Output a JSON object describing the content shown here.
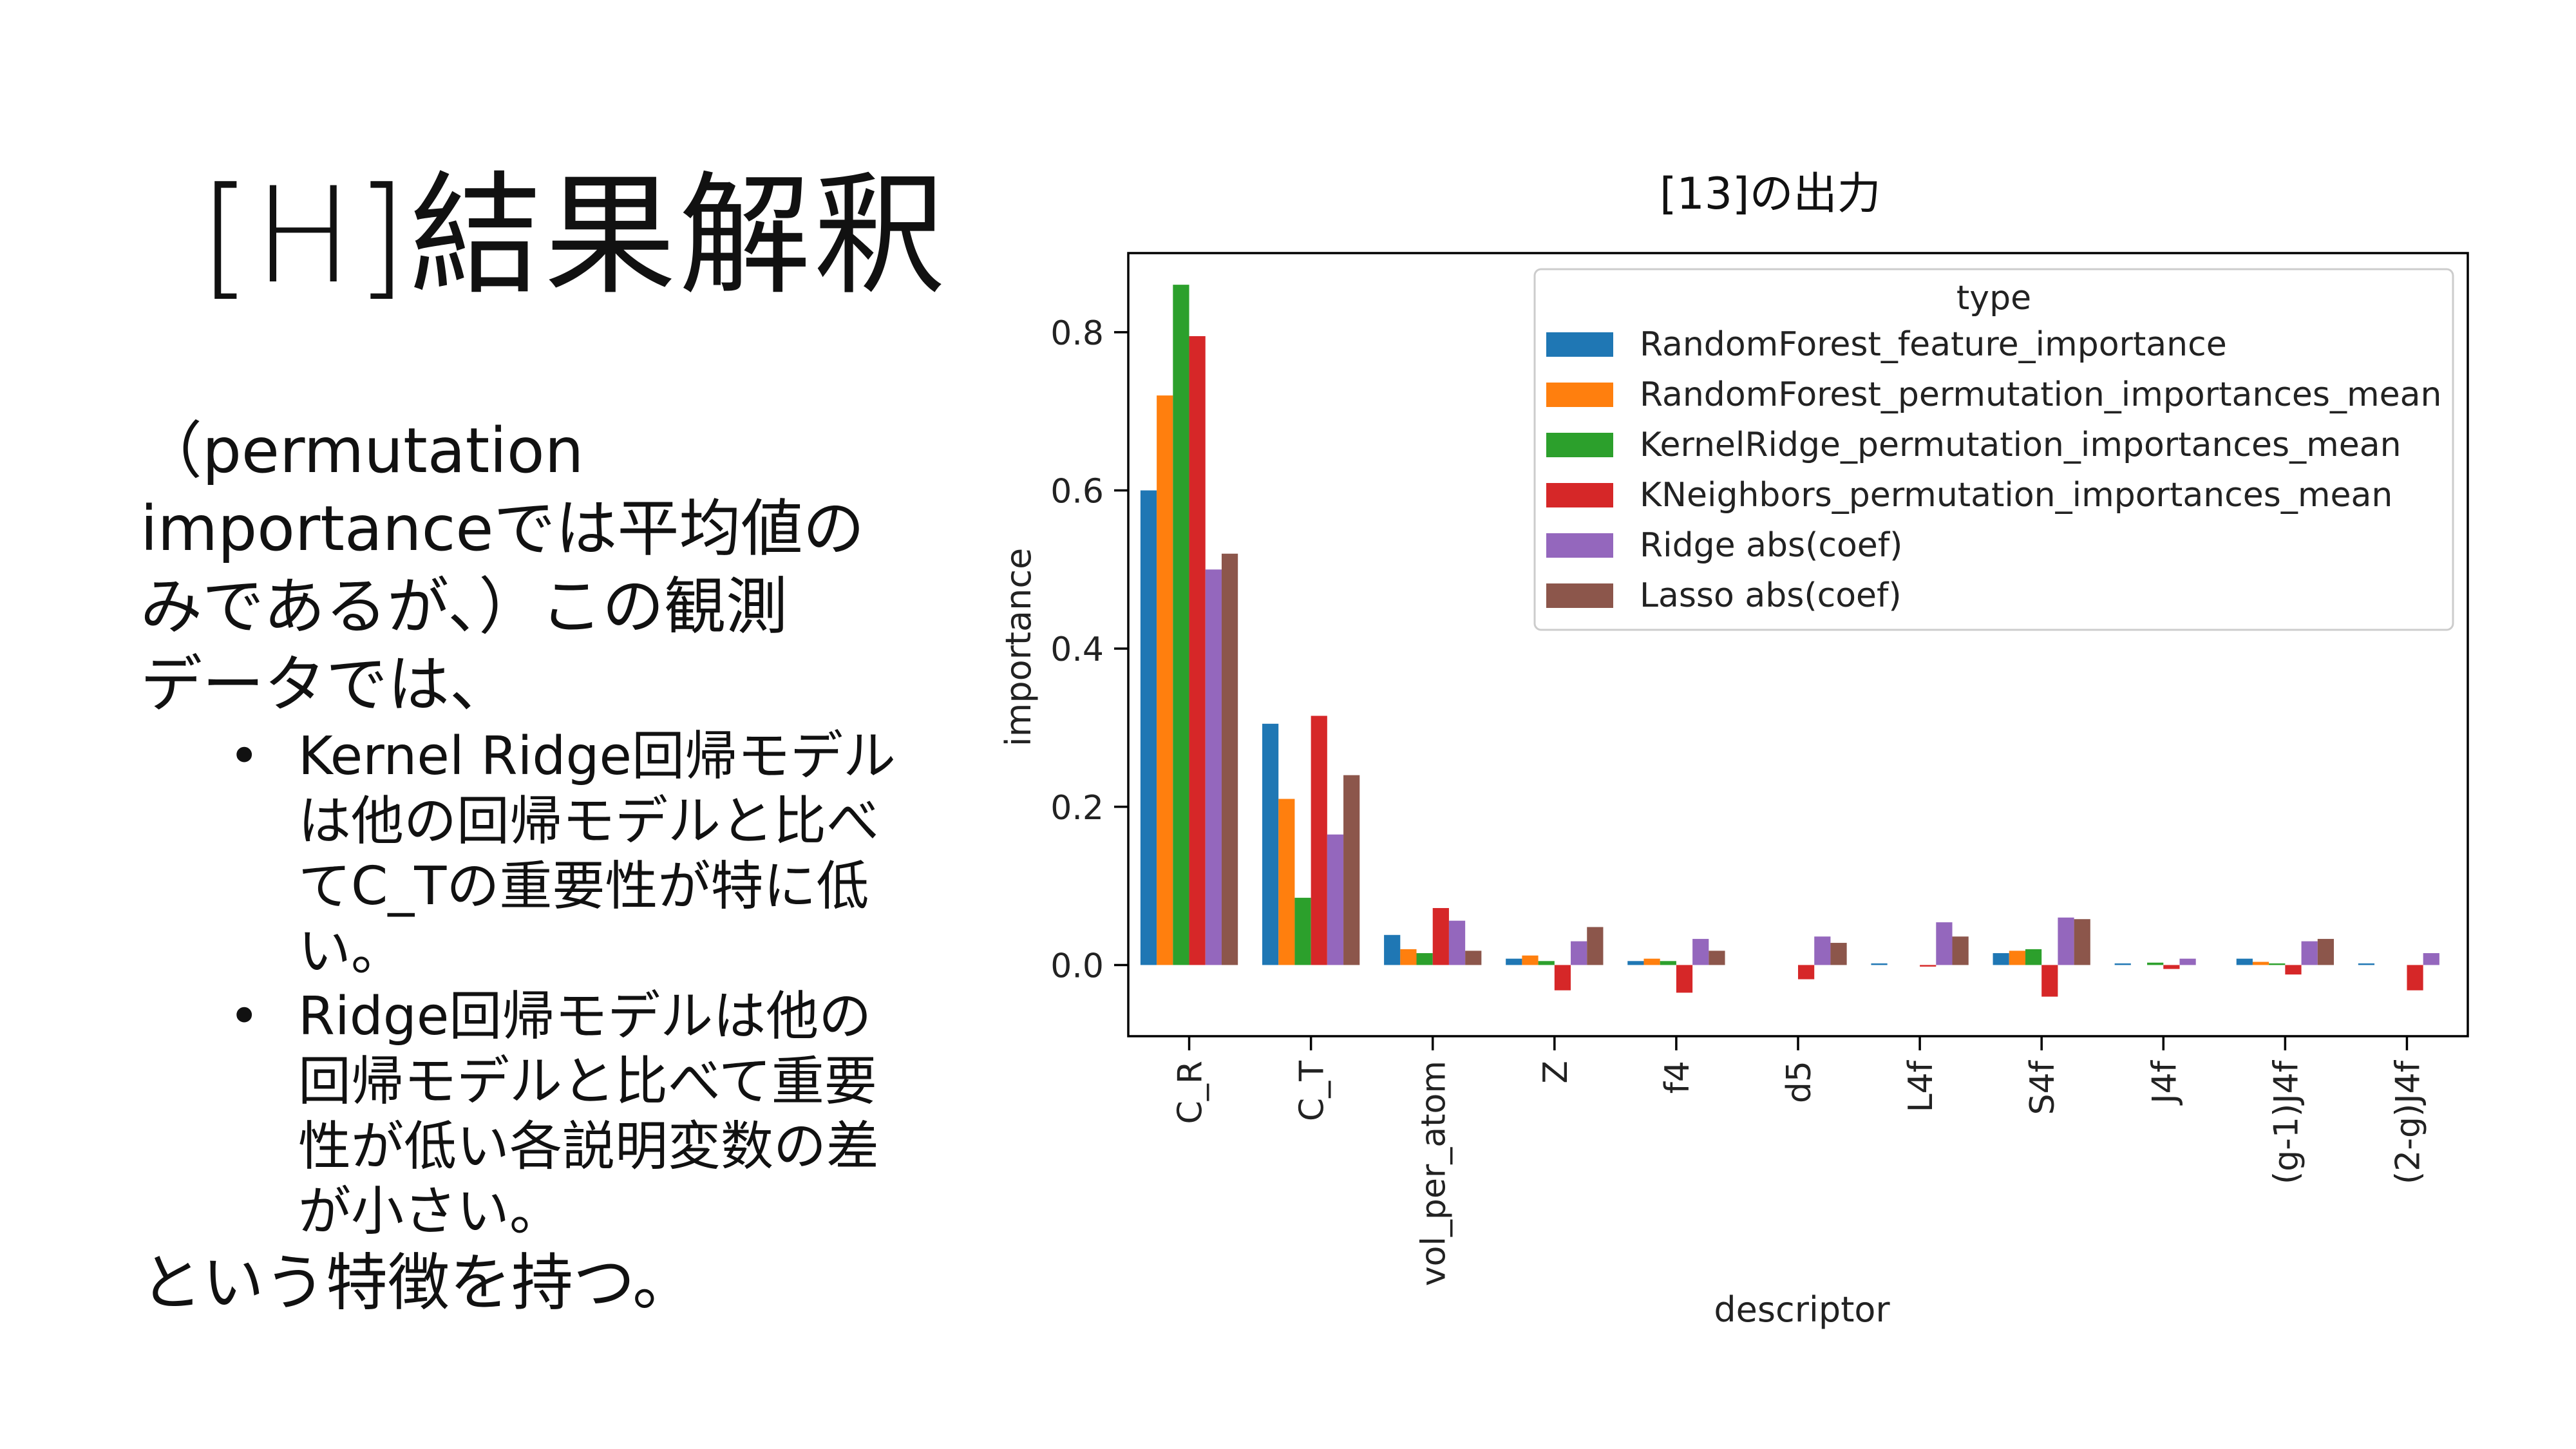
{
  "slide": {
    "title": "[H]結果解釈",
    "caption": "[13]の出力",
    "intro": "（permutation\nimportanceでは平均値の\nみであるが、）この観測\nデータでは、",
    "bullets": [
      "Kernel Ridge回帰モデル\nは他の回帰モデルと比べ\nてC_Tの重要性が特に低\nい。",
      "Ridge回帰モデルは他の\n回帰モデルと比べて重要\n性が低い各説明変数の差\nが小さい。"
    ],
    "outro": "という特徴を持つ。",
    "bullet_glyph": "•"
  },
  "chart_data": {
    "type": "bar",
    "xlabel": "descriptor",
    "ylabel": "importance",
    "ylim": [
      -0.09,
      0.9
    ],
    "yticks": [
      0.0,
      0.2,
      0.4,
      0.6,
      0.8
    ],
    "ytick_labels": [
      "0.0",
      "0.2",
      "0.4",
      "0.6",
      "0.8"
    ],
    "grid": false,
    "legend": {
      "title": "type",
      "placement": "top-right"
    },
    "categories": [
      "C_R",
      "C_T",
      "vol_per_atom",
      "Z",
      "f4",
      "d5",
      "L4f",
      "S4f",
      "J4f",
      "(g-1)J4f",
      "(2-g)J4f"
    ],
    "series": [
      {
        "name": "RandomForest_feature_importance",
        "color": "#1f77b4",
        "values": [
          0.6,
          0.305,
          0.038,
          0.008,
          0.005,
          0.0,
          0.002,
          0.015,
          0.002,
          0.008,
          0.002
        ]
      },
      {
        "name": "RandomForest_permutation_importances_mean",
        "color": "#ff7f0e",
        "values": [
          0.72,
          0.21,
          0.02,
          0.012,
          0.008,
          0.0,
          0.0,
          0.018,
          0.0,
          0.004,
          0.0
        ]
      },
      {
        "name": "KernelRidge_permutation_importances_mean",
        "color": "#2ca02c",
        "values": [
          0.86,
          0.085,
          0.015,
          0.005,
          0.005,
          0.0,
          0.0,
          0.02,
          0.003,
          0.002,
          0.0
        ]
      },
      {
        "name": "KNeighbors_permutation_importances_mean",
        "color": "#d62728",
        "values": [
          0.795,
          0.315,
          0.072,
          -0.032,
          -0.035,
          -0.018,
          -0.002,
          -0.04,
          -0.005,
          -0.012,
          -0.032
        ]
      },
      {
        "name": "Ridge abs(coef)",
        "color": "#9467bd",
        "values": [
          0.5,
          0.165,
          0.056,
          0.03,
          0.033,
          0.036,
          0.054,
          0.06,
          0.008,
          0.03,
          0.015
        ]
      },
      {
        "name": "Lasso abs(coef)",
        "color": "#8c564b",
        "values": [
          0.52,
          0.24,
          0.018,
          0.048,
          0.018,
          0.028,
          0.036,
          0.058,
          0.0,
          0.033,
          0.0
        ]
      }
    ]
  }
}
